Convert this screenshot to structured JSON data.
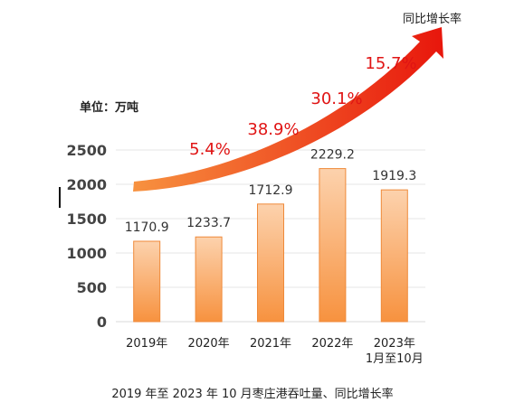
{
  "chart_data": {
    "type": "bar",
    "categories": [
      "2019年",
      "2020年",
      "2021年",
      "2022年",
      "2023年\n1月至10月"
    ],
    "values": [
      1170.9,
      1233.7,
      1712.9,
      2229.2,
      1919.3
    ],
    "value_labels": [
      "1170.9",
      "1233.7",
      "1712.9",
      "2229.2",
      "1919.3"
    ],
    "growth_labels": [
      "5.4%",
      "38.9%",
      "30.1%",
      "15.7%"
    ],
    "ylim": [
      0,
      2500
    ],
    "yticks": [
      0,
      500,
      1000,
      1500,
      2000,
      2500
    ],
    "unit_label": "单位：万吨",
    "trend_label": "同比增长率",
    "caption": "2019 年至 2023 年 10 月枣庄港吞吐量、同比增长率",
    "colors": {
      "bar_top": "#fcd2ad",
      "bar_bottom": "#f7923f",
      "bar_edge": "#ef8a3a",
      "arrow_start": "#f7923f",
      "arrow_end": "#e8160c",
      "growth_text": "#e01414"
    },
    "grid": true
  }
}
